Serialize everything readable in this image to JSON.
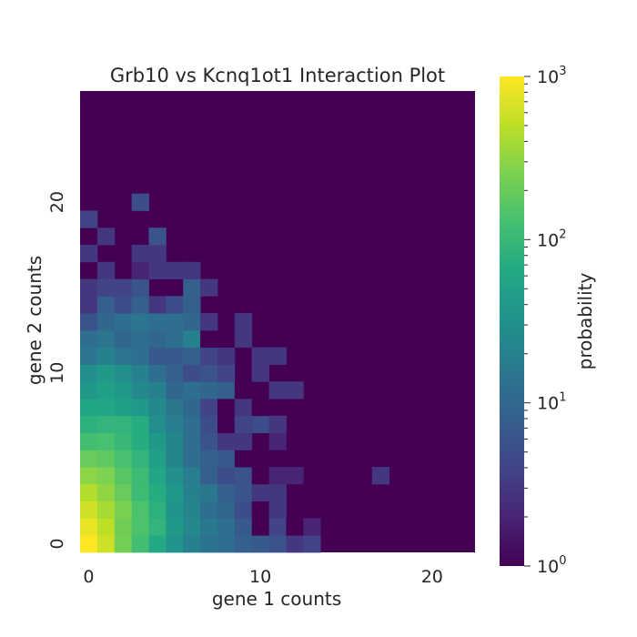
{
  "chart_data": {
    "type": "heatmap",
    "title": "Grb10 vs Kcnq1ot1 Interaction Plot",
    "xlabel": "gene 1 counts",
    "ylabel": "gene 2 counts",
    "x_ticks": [
      0,
      10,
      20
    ],
    "y_ticks": [
      0,
      10,
      20
    ],
    "x_range": [
      0,
      22
    ],
    "y_range": [
      0,
      26
    ],
    "colorbar": {
      "label": "probability",
      "scale": "log",
      "range": [
        1,
        1000
      ],
      "ticks": [
        {
          "value": 1,
          "base": "10",
          "exp": "0"
        },
        {
          "value": 10,
          "base": "10",
          "exp": "1"
        },
        {
          "value": 100,
          "base": "10",
          "exp": "2"
        },
        {
          "value": 1000,
          "base": "10",
          "exp": "3"
        }
      ],
      "colormap": "viridis"
    },
    "grid": false,
    "cells_note_background": "all unlisted cells have value 1",
    "cells": [
      [
        0,
        0,
        1200
      ],
      [
        1,
        0,
        600
      ],
      [
        2,
        0,
        230
      ],
      [
        3,
        0,
        120
      ],
      [
        4,
        0,
        65
      ],
      [
        5,
        0,
        35
      ],
      [
        6,
        0,
        20
      ],
      [
        7,
        0,
        14
      ],
      [
        8,
        0,
        12
      ],
      [
        9,
        0,
        8
      ],
      [
        10,
        0,
        7
      ],
      [
        11,
        0,
        6
      ],
      [
        12,
        0,
        3
      ],
      [
        13,
        0,
        4
      ],
      [
        0,
        1,
        800
      ],
      [
        1,
        1,
        500
      ],
      [
        2,
        1,
        220
      ],
      [
        3,
        1,
        140
      ],
      [
        4,
        1,
        90
      ],
      [
        5,
        1,
        40
      ],
      [
        6,
        1,
        25
      ],
      [
        7,
        1,
        16
      ],
      [
        8,
        1,
        12
      ],
      [
        9,
        1,
        7
      ],
      [
        10,
        1,
        1
      ],
      [
        11,
        1,
        4
      ],
      [
        12,
        1,
        1
      ],
      [
        13,
        1,
        2
      ],
      [
        0,
        2,
        600
      ],
      [
        1,
        2,
        400
      ],
      [
        2,
        2,
        250
      ],
      [
        3,
        2,
        140
      ],
      [
        4,
        2,
        80
      ],
      [
        5,
        2,
        35
      ],
      [
        6,
        2,
        22
      ],
      [
        7,
        2,
        12
      ],
      [
        8,
        2,
        10
      ],
      [
        9,
        2,
        5
      ],
      [
        10,
        2,
        1
      ],
      [
        11,
        2,
        3
      ],
      [
        0,
        3,
        450
      ],
      [
        1,
        3,
        320
      ],
      [
        2,
        3,
        200
      ],
      [
        3,
        3,
        110
      ],
      [
        4,
        3,
        70
      ],
      [
        5,
        3,
        40
      ],
      [
        6,
        3,
        20
      ],
      [
        7,
        3,
        16
      ],
      [
        8,
        3,
        8
      ],
      [
        9,
        3,
        6
      ],
      [
        10,
        3,
        3
      ],
      [
        11,
        3,
        3
      ],
      [
        0,
        4,
        300
      ],
      [
        1,
        4,
        260
      ],
      [
        2,
        4,
        160
      ],
      [
        3,
        4,
        110
      ],
      [
        4,
        4,
        60
      ],
      [
        5,
        4,
        30
      ],
      [
        6,
        4,
        18
      ],
      [
        7,
        4,
        8
      ],
      [
        8,
        4,
        5
      ],
      [
        9,
        4,
        6
      ],
      [
        10,
        4,
        1
      ],
      [
        11,
        4,
        2
      ],
      [
        12,
        4,
        2
      ],
      [
        17,
        4,
        3
      ],
      [
        0,
        5,
        200
      ],
      [
        1,
        5,
        180
      ],
      [
        2,
        5,
        130
      ],
      [
        3,
        5,
        90
      ],
      [
        4,
        5,
        50
      ],
      [
        5,
        5,
        22
      ],
      [
        6,
        5,
        12
      ],
      [
        7,
        5,
        8
      ],
      [
        8,
        5,
        7
      ],
      [
        9,
        5,
        1
      ],
      [
        0,
        6,
        120
      ],
      [
        1,
        6,
        130
      ],
      [
        2,
        6,
        100
      ],
      [
        3,
        6,
        70
      ],
      [
        4,
        6,
        40
      ],
      [
        5,
        6,
        22
      ],
      [
        6,
        6,
        12
      ],
      [
        7,
        6,
        6
      ],
      [
        8,
        6,
        3
      ],
      [
        9,
        6,
        3
      ],
      [
        11,
        6,
        2
      ],
      [
        0,
        7,
        80
      ],
      [
        1,
        7,
        90
      ],
      [
        2,
        7,
        90
      ],
      [
        3,
        7,
        70
      ],
      [
        4,
        7,
        30
      ],
      [
        5,
        7,
        18
      ],
      [
        6,
        7,
        12
      ],
      [
        7,
        7,
        5
      ],
      [
        8,
        7,
        1
      ],
      [
        9,
        7,
        4
      ],
      [
        10,
        7,
        5
      ],
      [
        11,
        7,
        3
      ],
      [
        0,
        8,
        60
      ],
      [
        1,
        8,
        60
      ],
      [
        2,
        8,
        50
      ],
      [
        3,
        8,
        40
      ],
      [
        4,
        8,
        25
      ],
      [
        5,
        8,
        16
      ],
      [
        6,
        8,
        10
      ],
      [
        7,
        8,
        4
      ],
      [
        8,
        8,
        1
      ],
      [
        9,
        8,
        3
      ],
      [
        10,
        8,
        1
      ],
      [
        0,
        9,
        40
      ],
      [
        1,
        9,
        50
      ],
      [
        2,
        9,
        40
      ],
      [
        3,
        9,
        25
      ],
      [
        4,
        9,
        20
      ],
      [
        5,
        9,
        10
      ],
      [
        6,
        9,
        12
      ],
      [
        7,
        9,
        10
      ],
      [
        8,
        9,
        8
      ],
      [
        9,
        9,
        1
      ],
      [
        11,
        9,
        3
      ],
      [
        12,
        9,
        3
      ],
      [
        0,
        10,
        30
      ],
      [
        1,
        10,
        40
      ],
      [
        2,
        10,
        30
      ],
      [
        3,
        10,
        20
      ],
      [
        4,
        10,
        12
      ],
      [
        5,
        10,
        8
      ],
      [
        6,
        10,
        5
      ],
      [
        7,
        10,
        6
      ],
      [
        8,
        10,
        4
      ],
      [
        10,
        10,
        3
      ],
      [
        0,
        11,
        15
      ],
      [
        1,
        11,
        20
      ],
      [
        2,
        11,
        15
      ],
      [
        3,
        11,
        12
      ],
      [
        4,
        11,
        7
      ],
      [
        5,
        11,
        7
      ],
      [
        6,
        11,
        8
      ],
      [
        7,
        11,
        4
      ],
      [
        8,
        11,
        3
      ],
      [
        10,
        11,
        3
      ],
      [
        11,
        11,
        3
      ],
      [
        0,
        12,
        12
      ],
      [
        1,
        12,
        15
      ],
      [
        2,
        12,
        10
      ],
      [
        3,
        12,
        12
      ],
      [
        4,
        12,
        10
      ],
      [
        5,
        12,
        12
      ],
      [
        6,
        12,
        20
      ],
      [
        7,
        12,
        1
      ],
      [
        8,
        12,
        1
      ],
      [
        9,
        12,
        3
      ],
      [
        0,
        13,
        6
      ],
      [
        1,
        13,
        10
      ],
      [
        2,
        13,
        12
      ],
      [
        3,
        13,
        15
      ],
      [
        4,
        13,
        12
      ],
      [
        5,
        13,
        12
      ],
      [
        6,
        13,
        10
      ],
      [
        7,
        13,
        3
      ],
      [
        9,
        13,
        3
      ],
      [
        0,
        14,
        3
      ],
      [
        1,
        14,
        8
      ],
      [
        2,
        14,
        5
      ],
      [
        3,
        14,
        8
      ],
      [
        4,
        14,
        3
      ],
      [
        5,
        14,
        5
      ],
      [
        6,
        14,
        8
      ],
      [
        0,
        15,
        3
      ],
      [
        1,
        15,
        4
      ],
      [
        2,
        15,
        4
      ],
      [
        3,
        15,
        6
      ],
      [
        6,
        15,
        8
      ],
      [
        7,
        15,
        3
      ],
      [
        1,
        16,
        3
      ],
      [
        3,
        16,
        2
      ],
      [
        4,
        16,
        3
      ],
      [
        5,
        16,
        3
      ],
      [
        6,
        16,
        3
      ],
      [
        0,
        17,
        3
      ],
      [
        3,
        17,
        3
      ],
      [
        4,
        17,
        3
      ],
      [
        1,
        18,
        3
      ],
      [
        4,
        18,
        6
      ],
      [
        0,
        19,
        4
      ],
      [
        3,
        20,
        5
      ]
    ]
  }
}
